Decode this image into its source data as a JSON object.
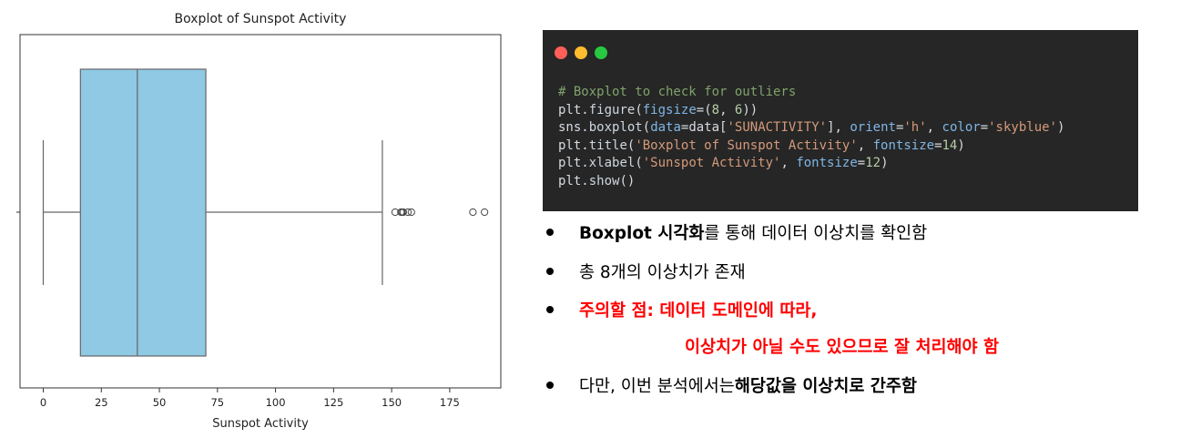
{
  "chart_data": {
    "type": "box",
    "orientation": "horizontal",
    "title": "Boxplot of Sunspot Activity",
    "xlabel": "Sunspot Activity",
    "ylabel": "",
    "xlim": [
      -10,
      197
    ],
    "xticks": [
      0,
      25,
      50,
      75,
      100,
      125,
      150,
      175
    ],
    "box": {
      "whisker_low": 0,
      "q1": 16,
      "median": 40.5,
      "q3": 70,
      "whisker_high": 146,
      "color": "#8fc9e3",
      "outliers": [
        151.5,
        154,
        154.5,
        155,
        157,
        158.5,
        185,
        190
      ]
    },
    "grid": false
  },
  "code_panel": {
    "dot_colors": [
      "#ff5f57",
      "#febc2e",
      "#28c840"
    ],
    "lines": [
      [
        {
          "t": "# Boxplot to check for outliers",
          "c": "c-comment"
        }
      ],
      [
        {
          "t": "plt",
          "c": "c-plain"
        },
        {
          "t": ".",
          "c": "c-plain"
        },
        {
          "t": "figure",
          "c": "c-fn"
        },
        {
          "t": "(",
          "c": "c-plain"
        },
        {
          "t": "figsize",
          "c": "c-kw"
        },
        {
          "t": "=(",
          "c": "c-plain"
        },
        {
          "t": "8",
          "c": "c-num"
        },
        {
          "t": ", ",
          "c": "c-plain"
        },
        {
          "t": "6",
          "c": "c-num"
        },
        {
          "t": "))",
          "c": "c-plain"
        }
      ],
      [
        {
          "t": "sns",
          "c": "c-plain"
        },
        {
          "t": ".",
          "c": "c-plain"
        },
        {
          "t": "boxplot",
          "c": "c-fn"
        },
        {
          "t": "(",
          "c": "c-plain"
        },
        {
          "t": "data",
          "c": "c-kw"
        },
        {
          "t": "=data[",
          "c": "c-plain"
        },
        {
          "t": "'SUNACTIVITY'",
          "c": "c-str"
        },
        {
          "t": "], ",
          "c": "c-plain"
        },
        {
          "t": "orient",
          "c": "c-kw"
        },
        {
          "t": "=",
          "c": "c-plain"
        },
        {
          "t": "'h'",
          "c": "c-str"
        },
        {
          "t": ", ",
          "c": "c-plain"
        },
        {
          "t": "color",
          "c": "c-kw"
        },
        {
          "t": "=",
          "c": "c-plain"
        },
        {
          "t": "'skyblue'",
          "c": "c-str"
        },
        {
          "t": ")",
          "c": "c-plain"
        }
      ],
      [
        {
          "t": "plt",
          "c": "c-plain"
        },
        {
          "t": ".",
          "c": "c-plain"
        },
        {
          "t": "title",
          "c": "c-fn"
        },
        {
          "t": "(",
          "c": "c-plain"
        },
        {
          "t": "'Boxplot of Sunspot Activity'",
          "c": "c-str"
        },
        {
          "t": ", ",
          "c": "c-plain"
        },
        {
          "t": "fontsize",
          "c": "c-kw"
        },
        {
          "t": "=",
          "c": "c-plain"
        },
        {
          "t": "14",
          "c": "c-num"
        },
        {
          "t": ")",
          "c": "c-plain"
        }
      ],
      [
        {
          "t": "plt",
          "c": "c-plain"
        },
        {
          "t": ".",
          "c": "c-plain"
        },
        {
          "t": "xlabel",
          "c": "c-fn"
        },
        {
          "t": "(",
          "c": "c-plain"
        },
        {
          "t": "'Sunspot Activity'",
          "c": "c-str"
        },
        {
          "t": ", ",
          "c": "c-plain"
        },
        {
          "t": "fontsize",
          "c": "c-kw"
        },
        {
          "t": "=",
          "c": "c-plain"
        },
        {
          "t": "12",
          "c": "c-num"
        },
        {
          "t": ")",
          "c": "c-plain"
        }
      ],
      [
        {
          "t": "plt",
          "c": "c-plain"
        },
        {
          "t": ".",
          "c": "c-plain"
        },
        {
          "t": "show",
          "c": "c-fn"
        },
        {
          "t": "()",
          "c": "c-plain"
        }
      ]
    ]
  },
  "bullets": {
    "b1_bold": "Boxplot 시각화",
    "b1_rest": "를 통해 데이터 이상치를 확인함",
    "b2": "총 8개의 이상치가 존재",
    "b3_line1": "주의할 점: 데이터 도메인에 따라,",
    "b3_line2": "이상치가 아닐 수도 있으므로 잘 처리해야 함",
    "b4_plain": "다만, 이번 분석에서는 ",
    "b4_bold": "해당값을 이상치로 간주함"
  }
}
